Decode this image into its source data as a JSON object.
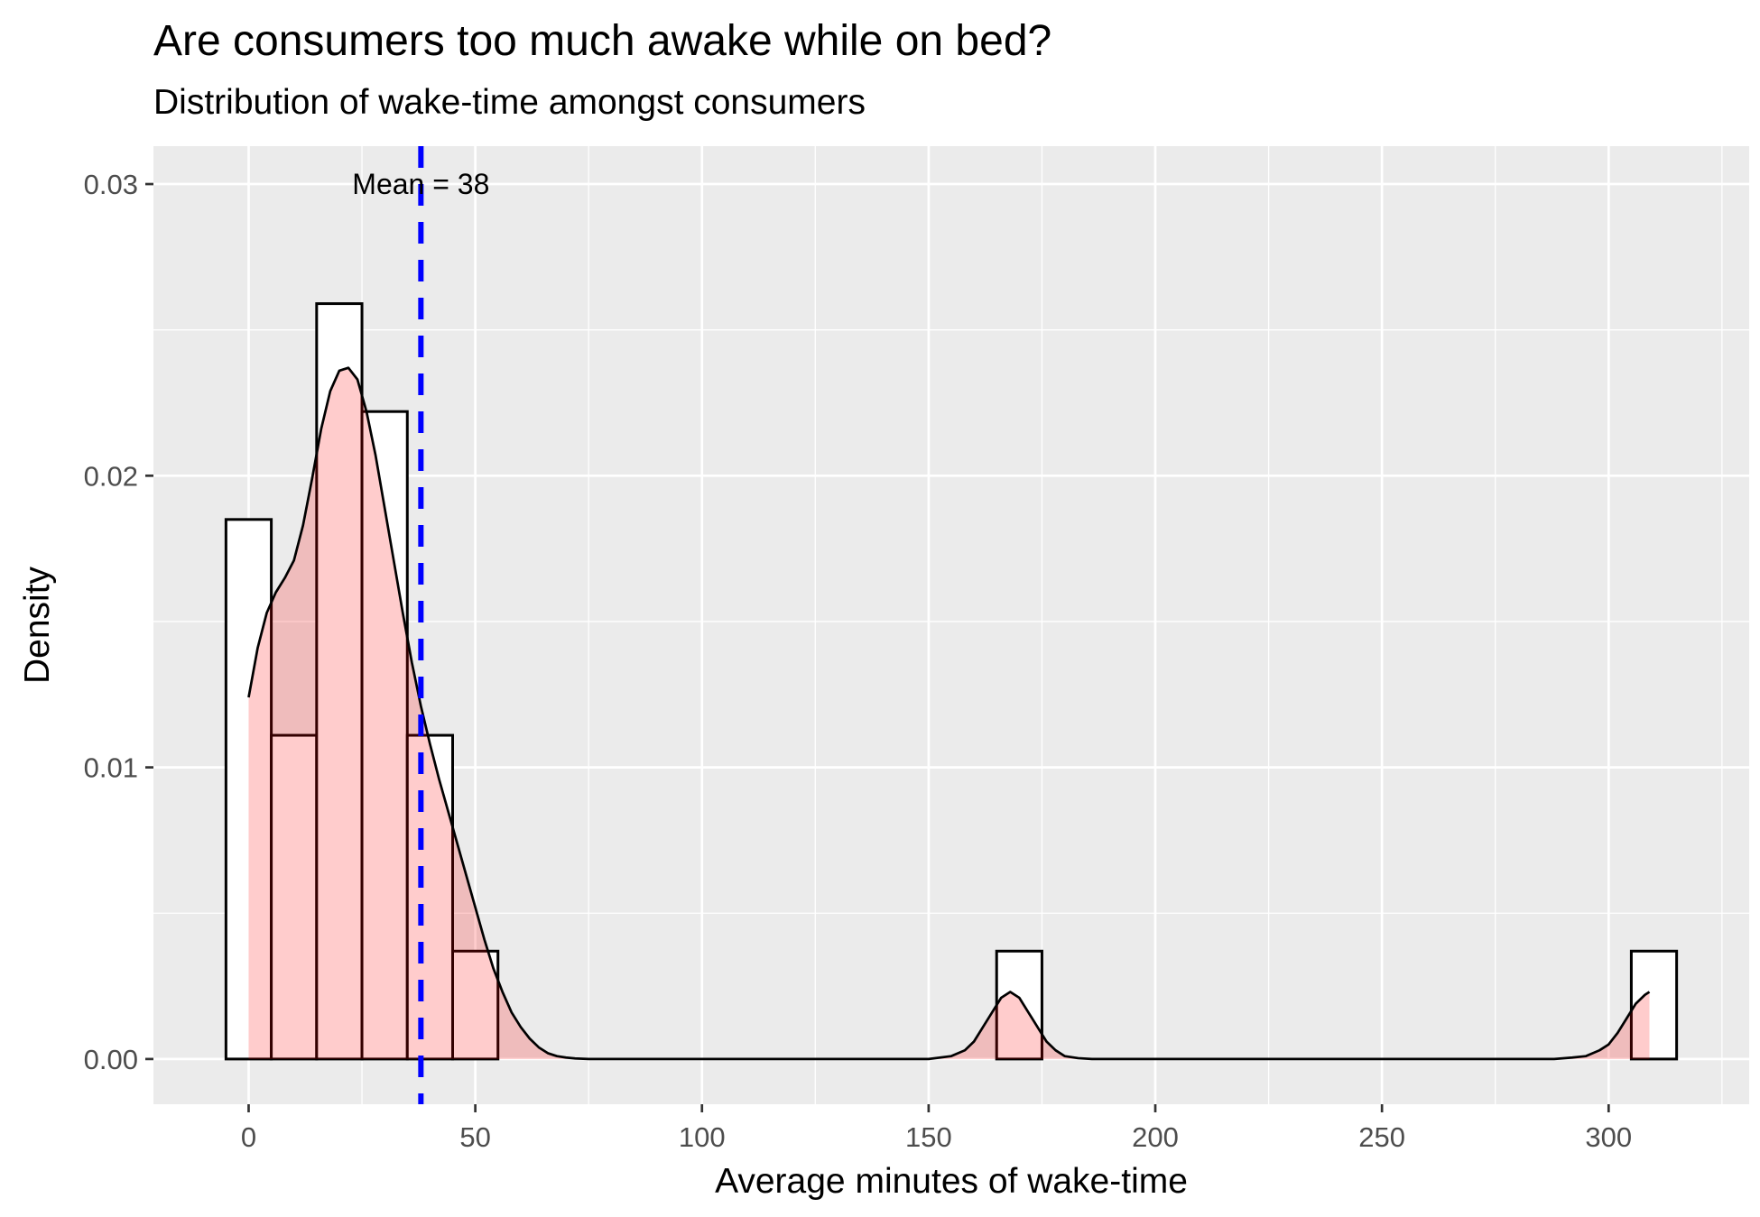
{
  "chart_data": {
    "type": "histogram",
    "title": "Are consumers too much awake while on bed?",
    "subtitle": "Distribution of wake-time amongst consumers",
    "xlabel": "Average minutes of wake-time",
    "ylabel": "Density",
    "xlim": [
      -21,
      331
    ],
    "ylim": [
      -0.00155,
      0.0313
    ],
    "x_ticks": [
      0,
      50,
      100,
      150,
      200,
      250,
      300
    ],
    "x_tick_labels": [
      "0",
      "50",
      "100",
      "150",
      "200",
      "250",
      "300"
    ],
    "y_ticks": [
      0,
      0.01,
      0.02,
      0.03
    ],
    "y_tick_labels": [
      "0.00",
      "0.01",
      "0.02",
      "0.03"
    ],
    "grid": true,
    "bins": [
      {
        "x0": -5,
        "x1": 5,
        "density": 0.0185
      },
      {
        "x0": 5,
        "x1": 15,
        "density": 0.0111
      },
      {
        "x0": 15,
        "x1": 25,
        "density": 0.0259
      },
      {
        "x0": 25,
        "x1": 35,
        "density": 0.0222
      },
      {
        "x0": 35,
        "x1": 45,
        "density": 0.0111
      },
      {
        "x0": 45,
        "x1": 55,
        "density": 0.0037
      },
      {
        "x0": 165,
        "x1": 175,
        "density": 0.0037
      },
      {
        "x0": 305,
        "x1": 315,
        "density": 0.0037
      }
    ],
    "density_curve": {
      "x": [
        0,
        2,
        4,
        6,
        8,
        10,
        12,
        14,
        16,
        18,
        20,
        22,
        24,
        26,
        28,
        30,
        32,
        34,
        36,
        38,
        40,
        42,
        44,
        46,
        48,
        50,
        52,
        54,
        56,
        58,
        60,
        62,
        64,
        66,
        68,
        70,
        72,
        75,
        80,
        90,
        100,
        120,
        140,
        150,
        155,
        158,
        160,
        162,
        164,
        166,
        168,
        170,
        172,
        174,
        176,
        178,
        180,
        183,
        186,
        190,
        200,
        250,
        280,
        288,
        292,
        295,
        298,
        300,
        302,
        304,
        306,
        308,
        309
      ],
      "y": [
        0.0124,
        0.0141,
        0.0153,
        0.016,
        0.0165,
        0.0171,
        0.0183,
        0.0199,
        0.0216,
        0.0229,
        0.0236,
        0.0237,
        0.0233,
        0.0222,
        0.0207,
        0.0189,
        0.0171,
        0.0153,
        0.0136,
        0.0121,
        0.0108,
        0.0096,
        0.0085,
        0.0074,
        0.0063,
        0.0052,
        0.0041,
        0.0031,
        0.0023,
        0.0016,
        0.0011,
        0.0007,
        0.0004,
        0.0002,
        0.0001,
        5e-05,
        2e-05,
        0.0,
        0.0,
        0.0,
        0.0,
        0.0,
        0.0,
        0.0,
        0.0001,
        0.0003,
        0.0006,
        0.0011,
        0.0016,
        0.0021,
        0.0023,
        0.0021,
        0.0016,
        0.0011,
        0.0006,
        0.0003,
        0.0001,
        3e-05,
        0.0,
        0.0,
        0.0,
        0.0,
        0.0,
        0.0,
        5e-05,
        0.0001,
        0.0003,
        0.0005,
        0.0009,
        0.0014,
        0.0019,
        0.0022,
        0.0023
      ]
    },
    "mean_line": {
      "x": 38,
      "label": "Mean = 38",
      "label_y": 0.03,
      "color": "#0000FF",
      "style": "dashed"
    },
    "colors": {
      "panel_background": "#EBEBEB",
      "grid": "#FFFFFF",
      "bar_fill": "#FFFFFF",
      "bar_outline": "#000000",
      "density_fill": "#FF0000",
      "density_fill_opacity": 0.2,
      "axis_text": "#4D4D4D"
    }
  }
}
